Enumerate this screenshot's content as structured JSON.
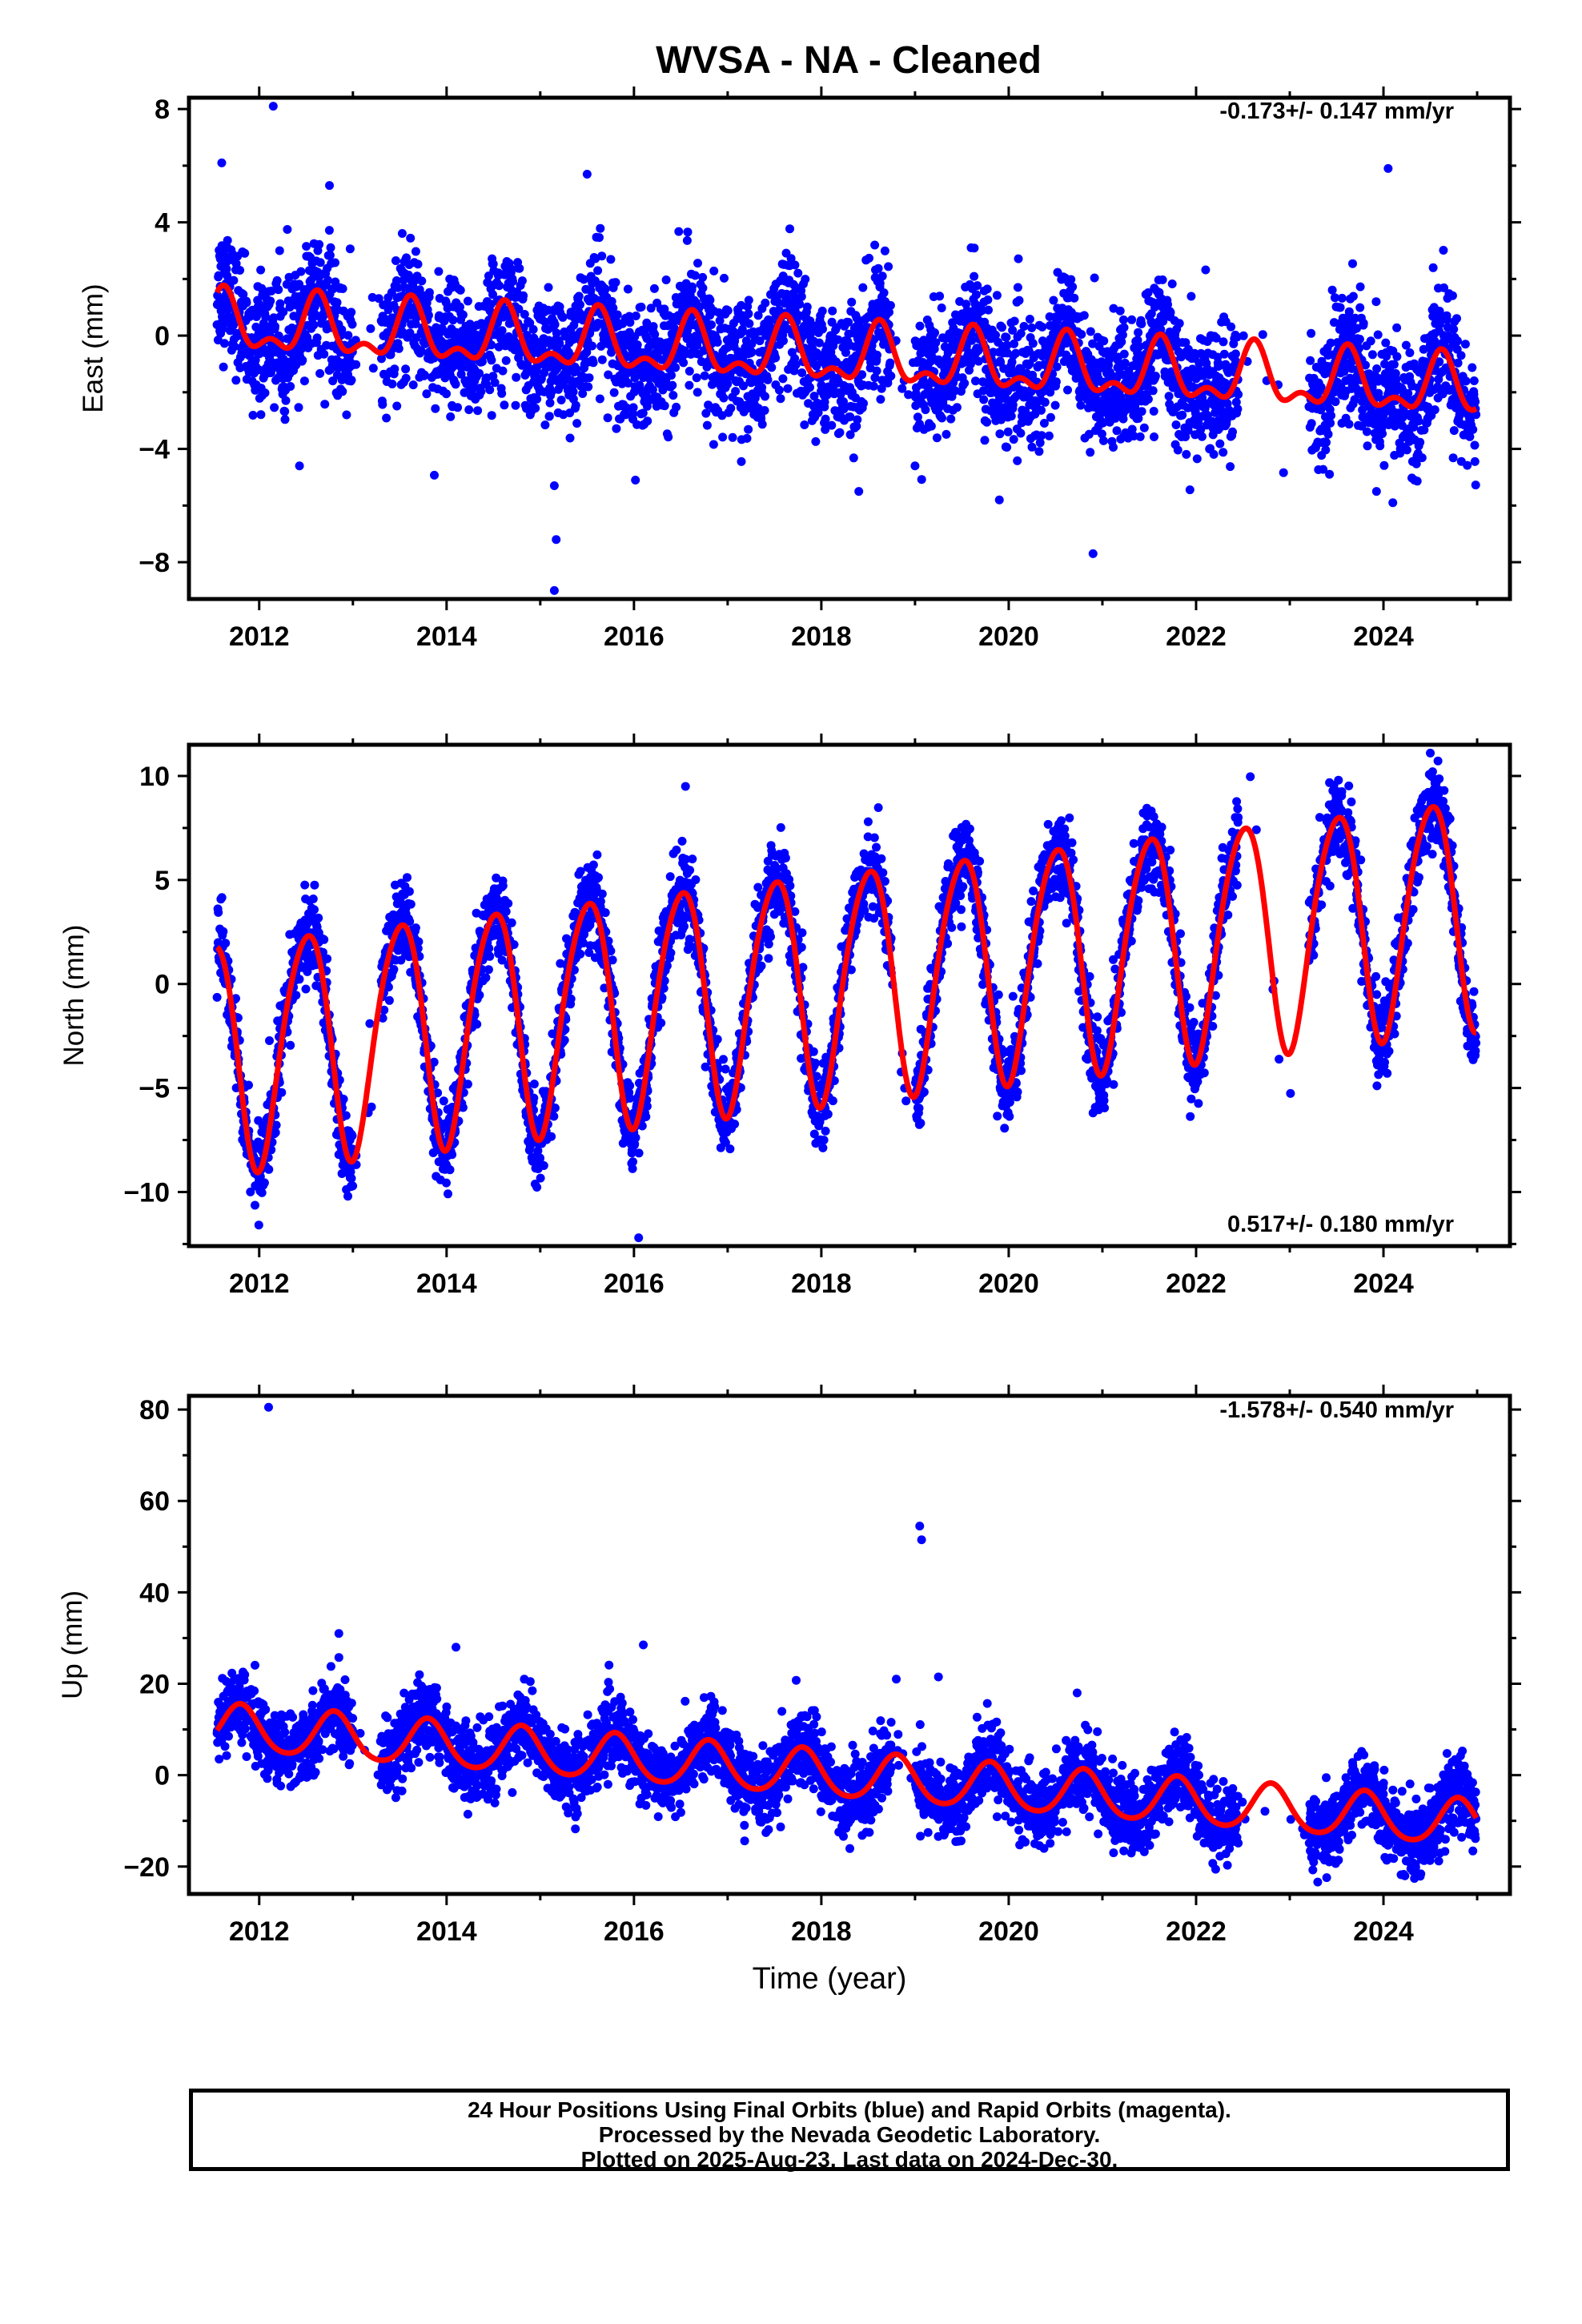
{
  "title": "WVSA  - NA - Cleaned",
  "xlabel": "Time (year)",
  "colors": {
    "final_orbits": "#0000ff",
    "model_fit": "#ff0000",
    "frame": "#000000"
  },
  "caption": {
    "line1": "24 Hour Positions Using Final Orbits (blue) and Rapid Orbits (magenta).",
    "line2": "Processed by the Nevada Geodetic Laboratory.",
    "line3": "Plotted on 2025-Aug-23. Last data on 2024-Dec-30."
  },
  "chart_data": [
    {
      "type": "scatter",
      "component": "east",
      "ylabel": "East (mm)",
      "rate_text": "-0.173+/- 0.147 mm/yr",
      "xlim": [
        2011.25,
        2025.35
      ],
      "ylim": [
        -9.3,
        8.4
      ],
      "xticks": [
        2012,
        2014,
        2016,
        2018,
        2020,
        2022,
        2024
      ],
      "xtick_labels": [
        "2012",
        "2014",
        "2016",
        "2018",
        "2020",
        "2022",
        "2024"
      ],
      "yticks": [
        8,
        4,
        0,
        -4,
        -8
      ],
      "ytick_labels": [
        "8",
        "4",
        "0",
        "−4",
        "−8"
      ],
      "grid": false,
      "model": {
        "offset": 0.4,
        "trend_mm_per_yr": -0.173,
        "annual_amp": 0.9,
        "annual_phase_year": 0.62,
        "semiannual_amp": 0.5,
        "semiannual_phase_year": 0.12
      },
      "scatter_sd": 1.1,
      "outliers": [
        [
          2012.15,
          8.1
        ],
        [
          2011.6,
          6.1
        ],
        [
          2012.75,
          5.3
        ],
        [
          2012.43,
          -4.6
        ],
        [
          2015.15,
          -5.3
        ],
        [
          2015.17,
          -7.2
        ],
        [
          2015.15,
          -9.0
        ],
        [
          2018.4,
          -5.5
        ],
        [
          2019.0,
          -4.6
        ],
        [
          2019.9,
          -5.8
        ],
        [
          2020.9,
          -7.7
        ],
        [
          2024.1,
          -5.9
        ],
        [
          2024.05,
          5.9
        ],
        [
          2015.5,
          5.7
        ]
      ]
    },
    {
      "type": "scatter",
      "component": "north",
      "ylabel": "North (mm)",
      "rate_text": "0.517+/- 0.180 mm/yr",
      "xlim": [
        2011.25,
        2025.35
      ],
      "ylim": [
        -12.6,
        11.5
      ],
      "xticks": [
        2012,
        2014,
        2016,
        2018,
        2020,
        2022,
        2024
      ],
      "xtick_labels": [
        "2012",
        "2014",
        "2016",
        "2018",
        "2020",
        "2022",
        "2024"
      ],
      "yticks": [
        10,
        5,
        0,
        -5,
        -10
      ],
      "ytick_labels": [
        "10",
        "5",
        "0",
        "−5",
        "−10"
      ],
      "grid": false,
      "model": {
        "offset": -3.3,
        "trend_mm_per_yr": 0.517,
        "annual_amp": 5.5,
        "annual_phase_year": 0.5,
        "semiannual_amp": 0.6,
        "semiannual_phase_year": 0.2
      },
      "scatter_sd": 1.0,
      "outliers": [
        [
          2016.05,
          -12.2
        ],
        [
          2012.85,
          -8.2
        ],
        [
          2020.9,
          -6.2
        ],
        [
          2024.5,
          11.1
        ],
        [
          2018.5,
          7.8
        ],
        [
          2016.55,
          9.5
        ]
      ]
    },
    {
      "type": "scatter",
      "component": "up",
      "ylabel": "Up (mm)",
      "rate_text": "-1.578+/- 0.540 mm/yr",
      "xlim": [
        2011.25,
        2025.35
      ],
      "ylim": [
        -26,
        83
      ],
      "xticks": [
        2012,
        2014,
        2016,
        2018,
        2020,
        2022,
        2024
      ],
      "xtick_labels": [
        "2012",
        "2014",
        "2016",
        "2018",
        "2020",
        "2022",
        "2024"
      ],
      "yticks": [
        80,
        60,
        40,
        20,
        0,
        -20
      ],
      "ytick_labels": [
        "80",
        "60",
        "40",
        "20",
        "0",
        "−20"
      ],
      "grid": false,
      "model": {
        "offset": 10.5,
        "trend_mm_per_yr": -1.578,
        "annual_amp": 5.0,
        "annual_phase_year": 0.8,
        "semiannual_amp": 0.6,
        "semiannual_phase_year": 0.3
      },
      "scatter_sd": 4.0,
      "outliers": [
        [
          2012.1,
          80.5
        ],
        [
          2019.05,
          54.5
        ],
        [
          2019.07,
          51.5
        ],
        [
          2019.25,
          21.5
        ],
        [
          2012.85,
          31.0
        ],
        [
          2014.1,
          28.0
        ],
        [
          2016.1,
          28.5
        ],
        [
          2018.8,
          21.0
        ]
      ]
    }
  ]
}
